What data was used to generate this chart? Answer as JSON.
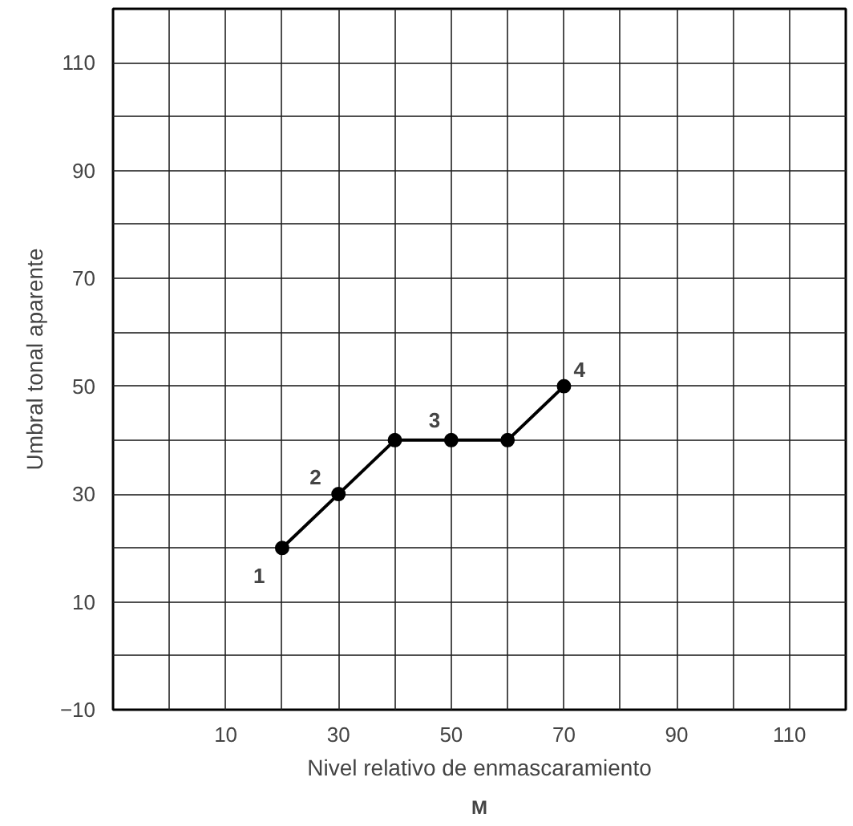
{
  "chart_data": {
    "type": "line",
    "xlabel": "Nivel relativo de enmascaramiento",
    "ylabel": "Umbral tonal aparente",
    "x": [
      20,
      30,
      40,
      50,
      60,
      70
    ],
    "series": [
      {
        "color": "#000000",
        "values": [
          20,
          30,
          40,
          40,
          40,
          50
        ]
      }
    ],
    "marker": "circle",
    "line_style": "solid",
    "grid": true,
    "xlim": [
      -10,
      120
    ],
    "ylim": [
      -10,
      120
    ],
    "xticks": [
      {
        "value": -10,
        "label": null
      },
      {
        "value": 0,
        "label": null
      },
      10,
      {
        "value": 20,
        "label": null
      },
      30,
      {
        "value": 40,
        "label": null
      },
      50,
      {
        "value": 60,
        "label": null
      },
      70,
      {
        "value": 80,
        "label": null
      },
      90,
      {
        "value": 100,
        "label": null
      },
      110,
      {
        "value": 120,
        "label": null
      }
    ],
    "yticks": [
      -10,
      {
        "value": 0,
        "label": null
      },
      10,
      {
        "value": 20,
        "label": null
      },
      30,
      {
        "value": 40,
        "label": null
      },
      50,
      {
        "value": 60,
        "label": null
      },
      70,
      {
        "value": 80,
        "label": null
      },
      90,
      {
        "value": 100,
        "label": null
      },
      110,
      {
        "value": 120,
        "label": null
      }
    ],
    "annotations": [
      {
        "text": "1",
        "x": 20,
        "y": 20
      },
      {
        "text": "2",
        "x": 30,
        "y": 30
      },
      {
        "text": "3",
        "x": 50,
        "y": 40
      },
      {
        "text": "4",
        "x": 70,
        "y": 50
      },
      "M"
    ]
  }
}
